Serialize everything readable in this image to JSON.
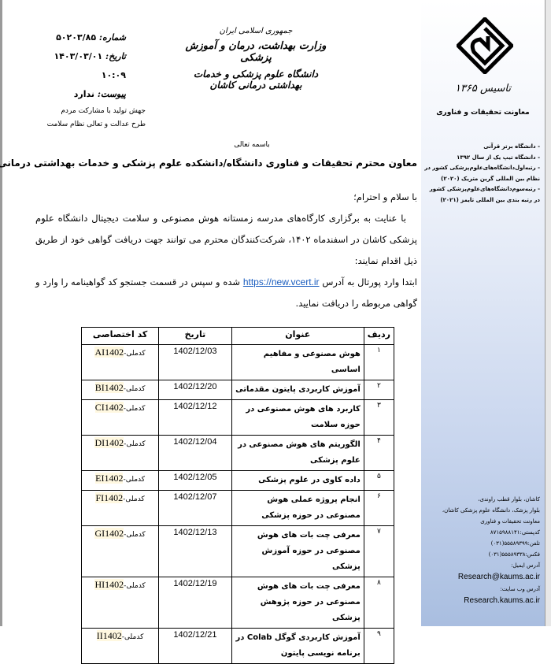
{
  "letter_meta": {
    "number_label": "شماره:",
    "number": "۵۰۲۰۳/۸۵",
    "date_label": "تاریخ:",
    "date": "۱۴۰۳/۰۳/۰۱ ۱۰:۰۹",
    "attachment_label": "پیوست:",
    "attachment": "ندارد"
  },
  "letterhead": {
    "line1": "جمهوری اسلامی ایران",
    "line2": "وزارت بهداشت، درمان و آموزش پزشکی",
    "line3": "دانشگاه علوم پزشکی و خدمات بهداشتی درمانی کاشان"
  },
  "slogans": [
    "جهش تولید با مشارکت مردم",
    "طرح عدالت و تعالی نظام سلامت"
  ],
  "bismillah": "باسمه تعالی",
  "addressee": "معاون محترم تحقیقات و فناوری دانشگاه/دانشکده علوم پزشکی و خدمات بهداشتی درمانی ...",
  "body": {
    "greeting": "با سلام و احترام؛",
    "para1": "با عنایت به برگزاری کارگاه‌های مدرسه زمستانه هوش مصنوعی و سلامت دیجیتال دانشگاه علوم پزشکی کاشان در اسفندماه ۱۴۰۲، شرکت‌کنندگان محترم می توانند جهت دریافت گواهی خود از طریق ذیل اقدام نمایند:",
    "para2_before": "ابتدا وارد پورتال به آدرس",
    "link": "https://new.vcert.ir",
    "para2_after": "شده و سپس در قسمت جستجو کد گواهینامه را وارد و گواهی مربوطه را دریافت نمایید."
  },
  "table": {
    "headers": [
      "ردیف",
      "عنوان",
      "تاریخ",
      "کد اختصاصی"
    ],
    "code_prefix": "کدملی-",
    "rows": [
      {
        "n": "۱",
        "title": "هوش مصنوعی و مفاهیم اساسی",
        "date": "1402/12/03",
        "code": "AI1402"
      },
      {
        "n": "۲",
        "title": "آموزش کاربردی پایتون مقدماتی",
        "date": "1402/12/20",
        "code": "BI1402"
      },
      {
        "n": "۳",
        "title": "کاربرد های هوش مصنوعی در حوزه سلامت",
        "date": "1402/12/12",
        "code": "CI1402"
      },
      {
        "n": "۴",
        "title": "الگوریتم های هوش مصنوعی در علوم پزشکی",
        "date": "1402/12/04",
        "code": "DI1402"
      },
      {
        "n": "۵",
        "title": "داده کاوی در علوم پزشکی",
        "date": "1402/12/05",
        "code": "EI1402"
      },
      {
        "n": "۶",
        "title": "انجام پروژه عملی هوش مصنوعی در حوزه پزشکی",
        "date": "1402/12/07",
        "code": "FI1402"
      },
      {
        "n": "۷",
        "title": "معرفی چت بات های هوش مصنوعی در حوزه آموزش پزشکی",
        "date": "1402/12/13",
        "code": "GI1402"
      },
      {
        "n": "۸",
        "title": "معرفی چت بات های هوش مصنوعی در حوزه پژوهش پزشکی",
        "date": "1402/12/19",
        "code": "HI1402"
      },
      {
        "n": "۹",
        "title": "آموزش کاربردی گوگل Colab در برنامه نویسی پایتون",
        "date": "1402/12/21",
        "code": "II1402"
      }
    ]
  },
  "sidebar": {
    "founded": "تاسیس ۱۳۶۵",
    "dept": "معاونت تحقیقات و فناوری",
    "honors": [
      "- دانشگاه برتر قرآنی",
      "- دانشگاه تیپ یک از سال ۱۳۹۲",
      "- رتبه‌اول‌دانشگاه‌های‌علوم‌پزشکی کشور در نظام بین المللی گرین متریک (۲۰۲۰)",
      "- رتبه‌سوم‌دانشگاه‌های‌علوم‌پزشکی کشور در رتبه بندی بین المللی تایمز (۲۰۲۱)"
    ],
    "address": [
      "کاشان، بلوار قطب راوندی،",
      "بلوار پزشک، دانشگاه علوم پزشکی کاشان،",
      "معاونت تحقیقات و فناوری",
      "کدپستی:۸۷۱۵۹۸۸۱۴۱",
      "تلفن:۵۵۵۸۹۳۹۹(۰۳۱)",
      "فکس:۵۵۵۸۹۳۳۸(۰۳۱)"
    ],
    "email_label": "آدرس ایمیل:",
    "email": "Research@kaums.ac.ir",
    "web_label": "آدرس وب سایت:",
    "web": "Research.kaums.ac.ir"
  }
}
